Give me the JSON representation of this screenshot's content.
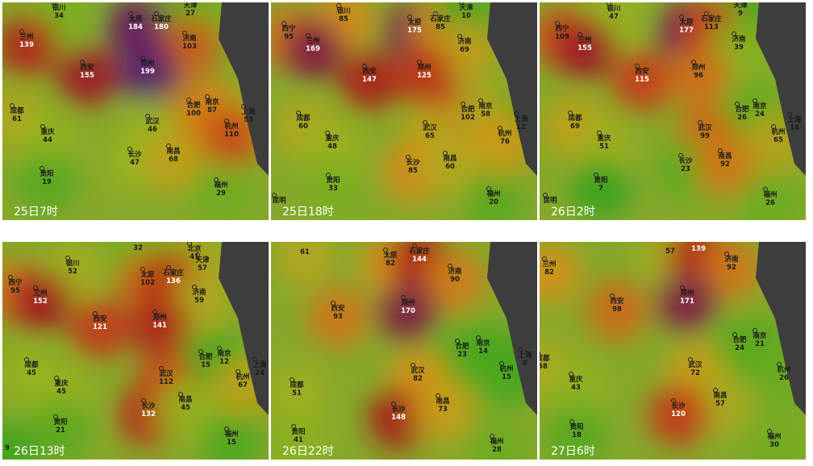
{
  "panels": [
    {
      "time": "25日7时",
      "cities": [
        {
          "name": "银川",
          "value": 34
        },
        {
          "name": "太原",
          "value": 184
        },
        {
          "name": "石家庄",
          "value": 180
        },
        {
          "name": "天津",
          "value": 27
        },
        {
          "name": "兰州",
          "value": 139
        },
        {
          "name": "济南",
          "value": 103
        },
        {
          "name": "西安",
          "value": 155
        },
        {
          "name": "郑州",
          "value": 199
        },
        {
          "name": "成都",
          "value": 61
        },
        {
          "name": "合肥",
          "value": 100
        },
        {
          "name": "南京",
          "value": 87
        },
        {
          "name": "上海",
          "value": 53
        },
        {
          "name": "武汉",
          "value": 46
        },
        {
          "name": "杭州",
          "value": 110
        },
        {
          "name": "重庆",
          "value": 44
        },
        {
          "name": "长沙",
          "value": 47
        },
        {
          "name": "南昌",
          "value": 68
        },
        {
          "name": "贵阳",
          "value": 19
        },
        {
          "name": "福州",
          "value": 29
        }
      ]
    },
    {
      "time": "25日18时",
      "cities": [
        {
          "name": "银川",
          "value": 85
        },
        {
          "name": "太原",
          "value": 175
        },
        {
          "name": "石家庄",
          "value": 85
        },
        {
          "name": "天津",
          "value": 10
        },
        {
          "name": "西宁",
          "value": 95
        },
        {
          "name": "兰州",
          "value": 169
        },
        {
          "name": "济南",
          "value": 69
        },
        {
          "name": "西安",
          "value": 147
        },
        {
          "name": "郑州",
          "value": 125
        },
        {
          "name": "合肥",
          "value": 102
        },
        {
          "name": "南京",
          "value": 58
        },
        {
          "name": "成都",
          "value": 60
        },
        {
          "name": "上海",
          "value": 12
        },
        {
          "name": "武汉",
          "value": 65
        },
        {
          "name": "杭州",
          "value": 76
        },
        {
          "name": "重庆",
          "value": 48
        },
        {
          "name": "长沙",
          "value": 85
        },
        {
          "name": "南昌",
          "value": 60
        },
        {
          "name": "贵阳",
          "value": 33
        },
        {
          "name": "福州",
          "value": 20
        },
        {
          "name": "昆明"
        }
      ]
    },
    {
      "time": "26日2时",
      "cities": [
        {
          "name": "银川",
          "value": 47
        },
        {
          "name": "天津",
          "value": 9
        },
        {
          "name": "太原",
          "value": 177
        },
        {
          "name": "石家庄",
          "value": 113
        },
        {
          "name": "西宁",
          "value": 109
        },
        {
          "name": "兰州",
          "value": 155
        },
        {
          "name": "济南",
          "value": 39
        },
        {
          "name": "西安",
          "value": 115
        },
        {
          "name": "郑州",
          "value": 96
        },
        {
          "name": "合肥",
          "value": 26
        },
        {
          "name": "南京",
          "value": 24
        },
        {
          "name": "上海",
          "value": 14
        },
        {
          "name": "成都",
          "value": 69
        },
        {
          "name": "武汉",
          "value": 99
        },
        {
          "name": "杭州",
          "value": 65
        },
        {
          "name": "重庆",
          "value": 51
        },
        {
          "name": "长沙",
          "value": 23
        },
        {
          "name": "南昌",
          "value": 92
        },
        {
          "name": "贵阳",
          "value": 7
        },
        {
          "name": "福州",
          "value": 26
        },
        {
          "name": "昆明"
        }
      ]
    },
    {
      "time": "26日13时",
      "cities": [
        {
          "value": 32
        },
        {
          "name": "北京",
          "value": 41
        },
        {
          "name": "天津",
          "value": 57
        },
        {
          "name": "银川",
          "value": 52
        },
        {
          "name": "太原",
          "value": 102
        },
        {
          "name": "石家庄",
          "value": 136
        },
        {
          "name": "西宁",
          "value": 95
        },
        {
          "name": "兰州",
          "value": 152
        },
        {
          "name": "济南",
          "value": 59
        },
        {
          "name": "西安",
          "value": 121
        },
        {
          "name": "郑州",
          "value": 141
        },
        {
          "name": "合肥",
          "value": 15
        },
        {
          "name": "南京",
          "value": 12
        },
        {
          "name": "上海",
          "value": 24
        },
        {
          "name": "成都",
          "value": 45
        },
        {
          "name": "武汉",
          "value": 112
        },
        {
          "name": "杭州",
          "value": 67
        },
        {
          "name": "重庆",
          "value": 45
        },
        {
          "name": "长沙",
          "value": 132
        },
        {
          "name": "南昌",
          "value": 45
        },
        {
          "name": "贵阳",
          "value": 21
        },
        {
          "name": "福州",
          "value": 15
        },
        {
          "value": 9
        }
      ]
    },
    {
      "time": "26日22时",
      "cities": [
        {
          "value": 61
        },
        {
          "name": "太原",
          "value": 82
        },
        {
          "name": "石家庄",
          "value": 144
        },
        {
          "name": "济南",
          "value": 90
        },
        {
          "name": "西安",
          "value": 93
        },
        {
          "name": "郑州",
          "value": 170
        },
        {
          "name": "合肥",
          "value": 23
        },
        {
          "name": "南京",
          "value": 14
        },
        {
          "name": "上海",
          "value": 8
        },
        {
          "name": "杭州",
          "value": 15
        },
        {
          "name": "武汉",
          "value": 82
        },
        {
          "name": "成都",
          "value": 51
        },
        {
          "name": "长沙",
          "value": 148
        },
        {
          "name": "南昌",
          "value": 73
        },
        {
          "name": "贵阳",
          "value": 41
        },
        {
          "name": "福州",
          "value": 28
        }
      ]
    },
    {
      "time": "27日6时",
      "cities": [
        {
          "value": 57
        },
        {
          "value": 139
        },
        {
          "name": "兰州",
          "value": 82
        },
        {
          "name": "济南",
          "value": 92
        },
        {
          "name": "西安",
          "value": 98
        },
        {
          "name": "郑州",
          "value": 171
        },
        {
          "name": "合肥",
          "value": 24
        },
        {
          "name": "南京",
          "value": 21
        },
        {
          "name": "成都",
          "value": 58
        },
        {
          "name": "武汉",
          "value": 72
        },
        {
          "name": "杭州",
          "value": 26
        },
        {
          "name": "重庆",
          "value": 43
        },
        {
          "name": "南昌",
          "value": 57
        },
        {
          "name": "长沙",
          "value": 120
        },
        {
          "name": "贵阳",
          "value": 18
        },
        {
          "name": "福州",
          "value": 30
        }
      ]
    }
  ]
}
